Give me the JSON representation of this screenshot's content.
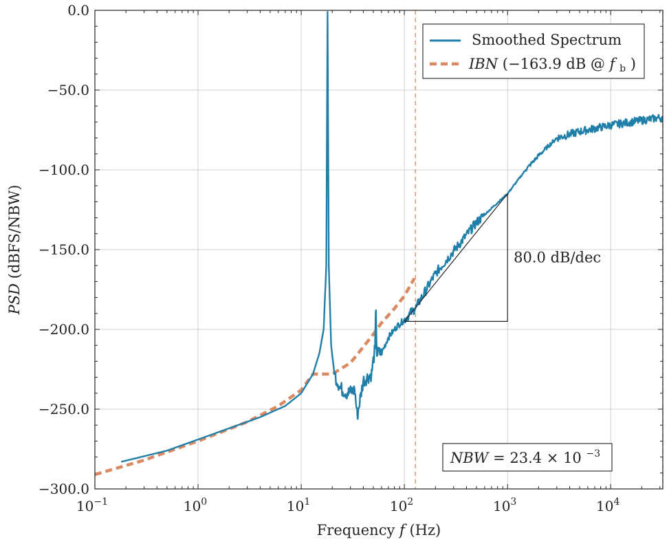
{
  "chart_data": {
    "type": "line",
    "xscale": "log",
    "xlabel": "Frequency",
    "xlabel_symbol": "f",
    "xlabel_unit": "(Hz)",
    "ylabel": "PSD",
    "ylabel_unit": "(dBFS/NBW)",
    "xlim": [
      0.1,
      32000
    ],
    "ylim": [
      -300,
      0
    ],
    "xticks": [
      0.1,
      1,
      10,
      100,
      1000,
      10000
    ],
    "xtick_labels": [
      {
        "base": "10",
        "exp": "−1"
      },
      {
        "base": "10",
        "exp": "0"
      },
      {
        "base": "10",
        "exp": "1"
      },
      {
        "base": "10",
        "exp": "2"
      },
      {
        "base": "10",
        "exp": "3"
      },
      {
        "base": "10",
        "exp": "4"
      }
    ],
    "yticks": [
      0,
      -50,
      -100,
      -150,
      -200,
      -250,
      -300
    ],
    "ytick_labels": [
      "0.0",
      "−50.0",
      "−100.0",
      "−150.0",
      "−200.0",
      "−250.0",
      "−300.0"
    ],
    "grid": true,
    "legend_position": "top-right",
    "series": [
      {
        "name": "Smoothed Spectrum",
        "color": "#1f7fa8",
        "style": "solid",
        "x": [
          0.18,
          0.5,
          1,
          2,
          4,
          7,
          10,
          13,
          15,
          16.5,
          17.5,
          18,
          18.5,
          19.5,
          21,
          24,
          28,
          33,
          35,
          40,
          48,
          52,
          53,
          54,
          60,
          70,
          85,
          100,
          130,
          200,
          300,
          500,
          700,
          1000,
          1500,
          2000,
          3000,
          5000,
          10000,
          20000,
          32000
        ],
        "values": [
          -283,
          -276,
          -269,
          -262,
          -255,
          -248,
          -240,
          -228,
          -215,
          -200,
          -160,
          -1,
          -160,
          -210,
          -228,
          -237,
          -240,
          -238,
          -254,
          -232,
          -228,
          -212,
          -188,
          -215,
          -215,
          -205,
          -198,
          -194,
          -186,
          -165,
          -151,
          -133,
          -124,
          -115,
          -100,
          -91,
          -80,
          -76,
          -72,
          -69,
          -67
        ]
      },
      {
        "name": "IBN",
        "label_italic": "IBN",
        "label_rest": "(−163.9 dB @ ",
        "label_sym": "f",
        "label_sub": "b",
        "label_close": ")",
        "color": "#d98a62",
        "style": "dashed",
        "x": [
          0.1,
          0.3,
          1,
          3,
          6,
          10,
          13,
          20,
          30,
          40,
          50,
          60,
          80,
          100,
          125
        ],
        "values": [
          -291,
          -282,
          -270,
          -258,
          -248,
          -238,
          -228,
          -228,
          -221,
          -211,
          -203,
          -196,
          -187,
          -179,
          -168
        ]
      }
    ],
    "slope_annotation": {
      "label": "80.0 dB/dec",
      "x_start": 100,
      "x_end": 1000,
      "y_start": -195,
      "y_end": -115
    },
    "vertical_markers": [
      {
        "x": 128,
        "color": "#d98a62",
        "style": "dashed"
      },
      {
        "x": 32000,
        "color": "#d98a62",
        "style": "dashed"
      }
    ],
    "nbw_box": {
      "lhs": "NBW",
      "eq": " = 23.4 × 10",
      "exp": "−3"
    }
  }
}
